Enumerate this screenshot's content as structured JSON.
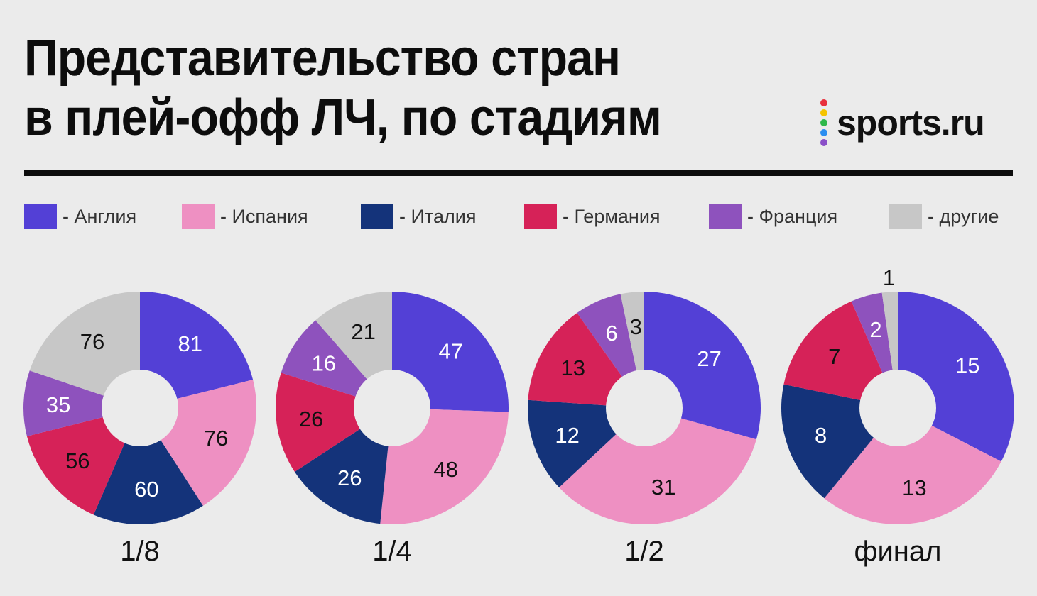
{
  "title": {
    "line1": "Представительство стран",
    "line2": "в плей-офф ЛЧ, по стадиям"
  },
  "logo": {
    "text": "sports.ru",
    "icon": "sports-ru-dots-logo",
    "dot_colors": [
      "#e8303c",
      "#f5c400",
      "#2eb84a",
      "#2b8ef0",
      "#8a4fc8"
    ]
  },
  "legend": [
    {
      "label": "- Англия",
      "color": "#5340d6"
    },
    {
      "label": "- Испания",
      "color": "#ee90c2"
    },
    {
      "label": "- Италия",
      "color": "#14337a"
    },
    {
      "label": "- Германия",
      "color": "#d62258"
    },
    {
      "label": "- Франция",
      "color": "#8e52bd"
    },
    {
      "label": "- другие",
      "color": "#c7c7c7"
    }
  ],
  "chart_data": [
    {
      "type": "pie",
      "title": "1/8",
      "categories": [
        "Англия",
        "Испания",
        "Италия",
        "Германия",
        "Франция",
        "другие"
      ],
      "values": [
        81,
        76,
        60,
        56,
        35,
        76
      ],
      "labels": [
        "81",
        "76",
        "60",
        "56",
        "35",
        "76"
      ],
      "donut": true
    },
    {
      "type": "pie",
      "title": "1/4",
      "categories": [
        "Англия",
        "Испания",
        "Италия",
        "Германия",
        "Франция",
        "другие"
      ],
      "values": [
        47,
        48,
        26,
        26,
        16,
        21
      ],
      "labels": [
        "47",
        "48",
        "26",
        "26",
        "16",
        "21"
      ],
      "donut": true
    },
    {
      "type": "pie",
      "title": "1/2",
      "categories": [
        "Англия",
        "Испания",
        "Италия",
        "Германия",
        "Франция",
        "другие"
      ],
      "values": [
        27,
        31,
        12,
        13,
        6,
        3
      ],
      "labels": [
        "27",
        "31",
        "12",
        "13",
        "6",
        "3"
      ],
      "donut": true
    },
    {
      "type": "pie",
      "title": "финал",
      "categories": [
        "Англия",
        "Испания",
        "Италия",
        "Германия",
        "Франция",
        "другие"
      ],
      "values": [
        15,
        13,
        8,
        7,
        2,
        1
      ],
      "labels": [
        "15",
        "13",
        "8",
        "7",
        "2",
        "1"
      ],
      "donut": true
    }
  ],
  "label_colors": [
    "#ffffff",
    "#111111",
    "#ffffff",
    "#111111",
    "#ffffff",
    "#111111"
  ]
}
